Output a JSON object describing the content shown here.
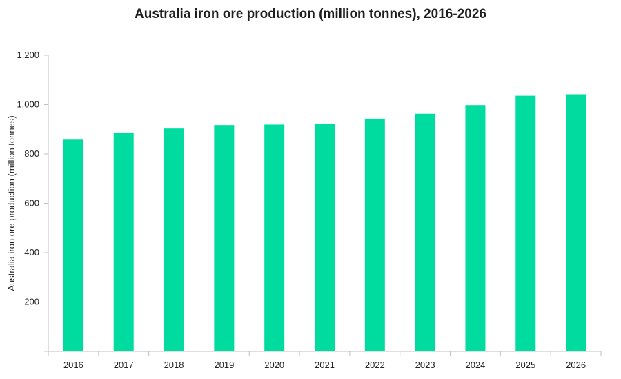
{
  "chart_data": {
    "type": "bar",
    "title": "Australia iron ore production (million tonnes), 2016-2026",
    "xlabel": "",
    "ylabel": "Australia iron ore production (million tonnes)",
    "categories": [
      "2016",
      "2017",
      "2018",
      "2019",
      "2020",
      "2021",
      "2022",
      "2023",
      "2024",
      "2025",
      "2026"
    ],
    "values": [
      858,
      886,
      903,
      917,
      919,
      923,
      943,
      963,
      998,
      1036,
      1042
    ],
    "ylim": [
      0,
      1200
    ],
    "yticks": [
      0,
      200,
      400,
      600,
      800,
      1000,
      1200
    ],
    "ytick_labels": [
      "",
      "200",
      "400",
      "600",
      "800",
      "1,000",
      "1,200"
    ],
    "bar_color": "#00DBA0",
    "grid": false,
    "legend": "none"
  }
}
